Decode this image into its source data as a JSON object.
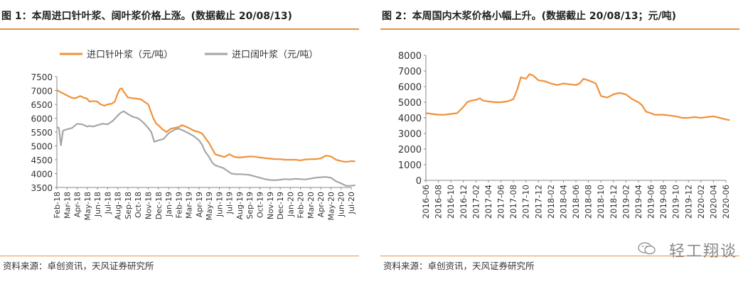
{
  "figure1": {
    "title": "图 1：本周进口针叶浆、阔叶浆价格上涨。(数据截止 20/08/13)",
    "source": "资料来源：卓创资讯，天风证券研究所"
  },
  "figure2": {
    "title": "图 2：本周国内木浆价格小幅上升。(数据截止 20/08/13；元/吨)",
    "source": "资料来源：卓创资讯，天风证券研究所"
  },
  "watermark": "轻工翔谈",
  "colors": {
    "orange": "#f0913a",
    "gray": "#a6a6a6",
    "accent": "#e8913a"
  },
  "chart_data": [
    {
      "type": "line",
      "title": "",
      "ylim": [
        3500,
        7500
      ],
      "yticks": [
        3500,
        4000,
        4500,
        5000,
        5500,
        6000,
        6500,
        7000,
        7500
      ],
      "grid": false,
      "legend_position": "top",
      "categories": [
        "Feb-18",
        "Mar-18",
        "Apr-18",
        "May-18",
        "Jun-18",
        "Jul-18",
        "Aug-18",
        "Sep-18",
        "Oct-18",
        "Nov-18",
        "Dec-18",
        "Jan-19",
        "Feb-19",
        "Mar-19",
        "Apr-19",
        "May-19",
        "Jun-19",
        "Jul-19",
        "Aug-19",
        "Sep-19",
        "Oct-19",
        "Nov-19",
        "Dec-19",
        "Jan-20",
        "Feb-20",
        "Mar-20",
        "Apr-20",
        "May-20",
        "Jun-20",
        "Jul-20"
      ],
      "series": [
        {
          "name": "进口针叶浆（元/吨）",
          "color": "#f0913a",
          "x": [
            0,
            0.3,
            0.7,
            1,
            1.4,
            1.7,
            2,
            2.3,
            2.6,
            3,
            3.2,
            3.6,
            4,
            4.3,
            4.7,
            5,
            5.4,
            5.7,
            6,
            6.2,
            6.4,
            6.6,
            7,
            7.5,
            8,
            8.3,
            8.6,
            9,
            9.2,
            9.5,
            9.8,
            10,
            10.4,
            10.8,
            11.2,
            11.6,
            12,
            12.3,
            12.7,
            13,
            13.5,
            14,
            14.3,
            14.6,
            15,
            15.3,
            15.6,
            16,
            16.5,
            17,
            17.5,
            18,
            18.5,
            19,
            19.5,
            20,
            20.5,
            21,
            21.5,
            22,
            22.5,
            23,
            23.5,
            24,
            24.5,
            25,
            25.5,
            26,
            26.5,
            27,
            27.5,
            28,
            28.5,
            29,
            29.4
          ],
          "y": [
            7020,
            6950,
            6880,
            6820,
            6750,
            6720,
            6750,
            6800,
            6750,
            6700,
            6600,
            6620,
            6600,
            6500,
            6450,
            6500,
            6520,
            6600,
            6900,
            7050,
            7080,
            6950,
            6750,
            6720,
            6700,
            6680,
            6600,
            6500,
            6300,
            6000,
            5800,
            5750,
            5600,
            5500,
            5620,
            5650,
            5680,
            5750,
            5700,
            5650,
            5550,
            5500,
            5450,
            5300,
            5100,
            4900,
            4700,
            4650,
            4600,
            4700,
            4600,
            4580,
            4600,
            4620,
            4610,
            4580,
            4560,
            4540,
            4520,
            4520,
            4500,
            4500,
            4500,
            4480,
            4510,
            4520,
            4520,
            4550,
            4650,
            4620,
            4500,
            4450,
            4420,
            4450,
            4440
          ]
        },
        {
          "name": "进口阔叶浆（元/吨）",
          "color": "#a6a6a6",
          "x": [
            0,
            0.2,
            0.4,
            0.6,
            1,
            1.5,
            2,
            2.5,
            3,
            3.2,
            3.6,
            4,
            4.5,
            5,
            5.5,
            6,
            6.3,
            6.6,
            7,
            7.5,
            8,
            8.5,
            9,
            9.3,
            9.6,
            10,
            10.5,
            11,
            11.4,
            11.7,
            12,
            12.5,
            13,
            13.5,
            14,
            14.3,
            14.6,
            15,
            15.3,
            15.6,
            16,
            16.4,
            16.8,
            17.2,
            17.6,
            18,
            18.5,
            19,
            19.5,
            20,
            20.5,
            21,
            21.5,
            22,
            22.5,
            23,
            23.5,
            24,
            24.5,
            25,
            25.5,
            26,
            26.5,
            27,
            27.5,
            28,
            28.5,
            29,
            29.4
          ],
          "y": [
            5680,
            5650,
            5020,
            5550,
            5600,
            5650,
            5800,
            5780,
            5700,
            5720,
            5700,
            5750,
            5800,
            5780,
            5900,
            6100,
            6200,
            6250,
            6150,
            6050,
            6000,
            5850,
            5650,
            5500,
            5150,
            5200,
            5250,
            5450,
            5550,
            5600,
            5620,
            5550,
            5450,
            5350,
            5200,
            5050,
            4800,
            4600,
            4400,
            4300,
            4250,
            4200,
            4100,
            4000,
            3980,
            3980,
            3970,
            3950,
            3900,
            3850,
            3800,
            3770,
            3760,
            3780,
            3800,
            3790,
            3810,
            3800,
            3790,
            3820,
            3850,
            3870,
            3880,
            3850,
            3720,
            3650,
            3560,
            3560,
            3580
          ]
        }
      ]
    },
    {
      "type": "line",
      "title": "",
      "ylim": [
        0,
        8000
      ],
      "yticks": [
        0,
        1000,
        2000,
        3000,
        4000,
        5000,
        6000,
        7000,
        8000
      ],
      "grid": false,
      "categories": [
        "2016-06",
        "2016-08",
        "2016-10",
        "2016-12",
        "2017-02",
        "2017-04",
        "2017-06",
        "2017-08",
        "2017-10",
        "2017-12",
        "2018-02",
        "2018-04",
        "2018-06",
        "2018-08",
        "2018-10",
        "2018-12",
        "2019-02",
        "2019-04",
        "2019-06",
        "2019-08",
        "2019-10",
        "2019-12",
        "2020-02",
        "2020-04",
        "2020-06"
      ],
      "series": [
        {
          "name": "",
          "color": "#f0913a",
          "x": [
            0,
            0.5,
            1,
            1.5,
            2,
            2.5,
            3,
            3.3,
            3.6,
            4,
            4.3,
            4.6,
            5,
            5.5,
            6,
            6.5,
            7,
            7.3,
            7.6,
            8,
            8.3,
            8.6,
            9,
            9.5,
            10,
            10.5,
            11,
            11.5,
            12,
            12.3,
            12.6,
            13,
            13.3,
            13.6,
            14,
            14.5,
            15,
            15.5,
            16,
            16.5,
            17,
            17.3,
            17.6,
            18,
            18.3,
            18.6,
            19,
            19.5,
            20,
            20.5,
            21,
            21.5,
            22,
            22.5,
            23,
            23.5,
            24,
            24.3
          ],
          "y": [
            4300,
            4250,
            4200,
            4200,
            4250,
            4300,
            4700,
            5000,
            5100,
            5150,
            5250,
            5100,
            5050,
            5000,
            5000,
            5050,
            5200,
            5800,
            6600,
            6500,
            6800,
            6700,
            6400,
            6350,
            6200,
            6100,
            6200,
            6150,
            6100,
            6200,
            6500,
            6400,
            6300,
            6200,
            5400,
            5300,
            5500,
            5600,
            5500,
            5200,
            5000,
            4800,
            4400,
            4300,
            4200,
            4200,
            4200,
            4150,
            4100,
            4000,
            4000,
            4050,
            4000,
            4050,
            4100,
            4000,
            3900,
            3850
          ]
        }
      ]
    }
  ]
}
